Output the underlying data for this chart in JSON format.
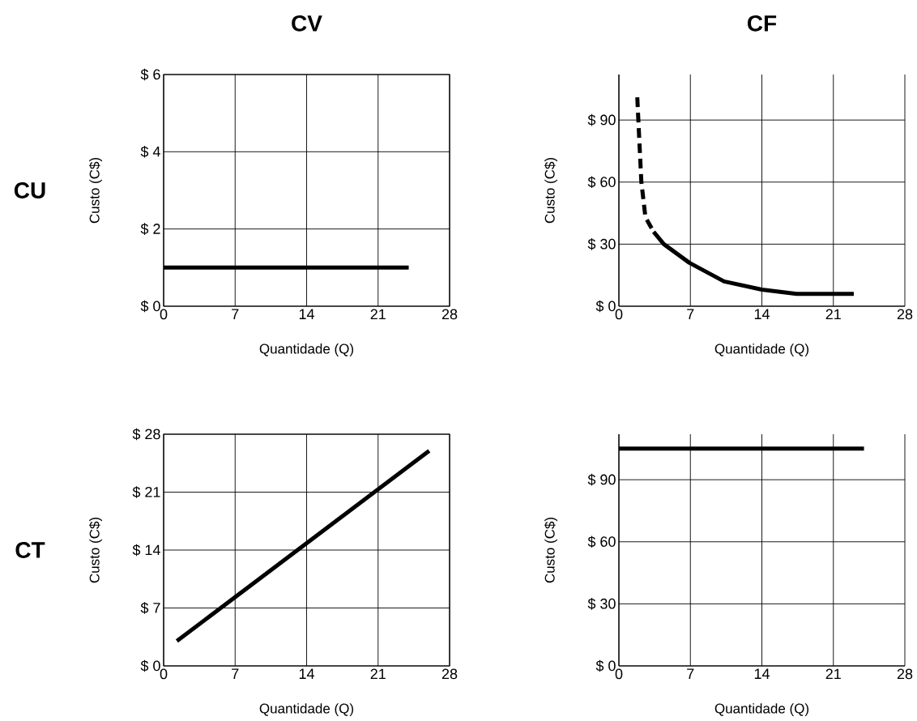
{
  "chart_data": [
    {
      "type": "line",
      "title": "CV",
      "annotations": [
        "CU"
      ],
      "xlabel": "Quantidade (Q)",
      "ylabel": "Custo (C$)",
      "xlim": [
        0,
        28
      ],
      "ylim": [
        0,
        6
      ],
      "xticks": [
        0,
        7,
        14,
        21,
        28
      ],
      "yticks": [
        {
          "value": 0,
          "label": "$ 0"
        },
        {
          "value": 2,
          "label": "$ 2"
        },
        {
          "value": 4,
          "label": "$ 4"
        },
        {
          "value": 6,
          "label": "$ 6"
        }
      ],
      "grid": true,
      "series": [
        {
          "color": "#000000",
          "x": [
            0,
            24
          ],
          "values": [
            1,
            1
          ]
        }
      ]
    },
    {
      "type": "line",
      "title": "CF",
      "xlabel": "Quantidade (Q)",
      "ylabel": "Custo (C$)",
      "xlim": [
        0,
        28
      ],
      "ylim": [
        0,
        112
      ],
      "xticks": [
        0,
        7,
        14,
        21,
        28
      ],
      "yticks": [
        {
          "value": 0,
          "label": "$ 0"
        },
        {
          "value": 30,
          "label": "$ 30"
        },
        {
          "value": 60,
          "label": "$ 60"
        },
        {
          "value": 90,
          "label": "$ 90"
        }
      ],
      "grid": true,
      "series": [
        {
          "color": "#000000",
          "line_style": "dashed",
          "x": [
            1.8,
            2.0,
            2.2,
            2.6,
            3.4
          ],
          "values": [
            101,
            80,
            60,
            43,
            36
          ]
        },
        {
          "color": "#000000",
          "line_style": "solid",
          "x": [
            3.4,
            4.4,
            6.9,
            10.3,
            14,
            17.4,
            23
          ],
          "values": [
            36,
            30,
            21,
            12,
            8,
            6,
            6
          ]
        }
      ]
    },
    {
      "type": "line",
      "annotations": [
        "CT"
      ],
      "xlabel": "Quantidade (Q)",
      "ylabel": "Custo (C$)",
      "xlim": [
        0,
        28
      ],
      "ylim": [
        0,
        28
      ],
      "xticks": [
        0,
        7,
        14,
        21,
        28
      ],
      "yticks": [
        {
          "value": 0,
          "label": "$ 0"
        },
        {
          "value": 7,
          "label": "$ 7"
        },
        {
          "value": 14,
          "label": "$ 14"
        },
        {
          "value": 21,
          "label": "$ 21"
        },
        {
          "value": 28,
          "label": "$ 28"
        }
      ],
      "grid": true,
      "series": [
        {
          "color": "#000000",
          "x": [
            1.3,
            26
          ],
          "values": [
            3,
            26
          ]
        }
      ]
    },
    {
      "type": "line",
      "xlabel": "Quantidade (Q)",
      "ylabel": "Custo (C$)",
      "xlim": [
        0,
        28
      ],
      "ylim": [
        0,
        112
      ],
      "xticks": [
        0,
        7,
        14,
        21,
        28
      ],
      "yticks": [
        {
          "value": 0,
          "label": "$ 0"
        },
        {
          "value": 30,
          "label": "$ 30"
        },
        {
          "value": 60,
          "label": "$ 60"
        },
        {
          "value": 90,
          "label": "$ 90"
        }
      ],
      "grid": true,
      "series": [
        {
          "color": "#000000",
          "x": [
            0,
            24
          ],
          "values": [
            105,
            105
          ]
        }
      ]
    }
  ]
}
